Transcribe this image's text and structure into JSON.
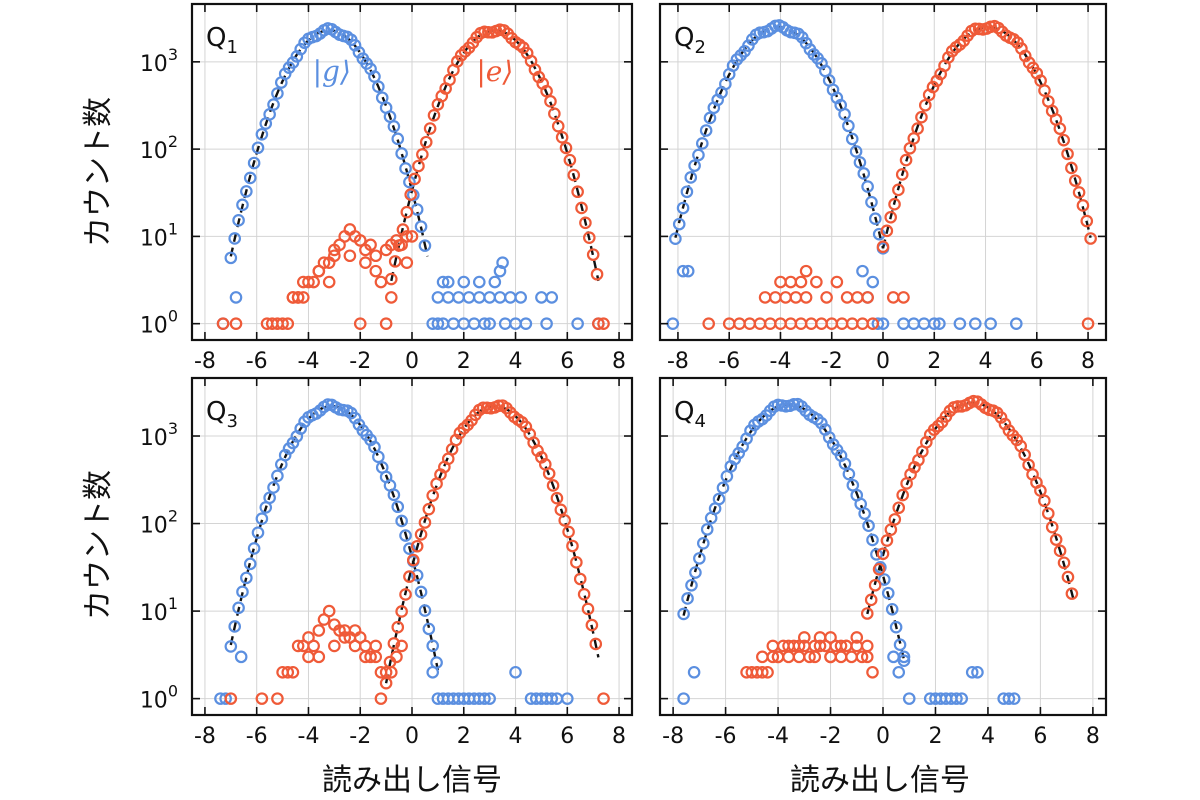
{
  "chart_data": [
    {
      "type": "scatter",
      "panel": "Q",
      "panel_sub": "1",
      "y_scale": "log",
      "xlim": [
        -8.5,
        8.5
      ],
      "ylim": [
        0.65,
        4600
      ],
      "xticks": [
        -8,
        -6,
        -4,
        -2,
        0,
        2,
        4,
        6,
        8
      ],
      "yticks": [
        1,
        10,
        100,
        1000
      ],
      "ytick_labels": [
        {
          "base": "10",
          "exp": "0"
        },
        {
          "base": "10",
          "exp": "1"
        },
        {
          "base": "10",
          "exp": "2"
        },
        {
          "base": "10",
          "exp": "3"
        }
      ],
      "xlabel": "",
      "ylabel": "カウント数",
      "grid": true,
      "annotations": [
        {
          "text": "|g⟩",
          "x": -3.1,
          "y": 600,
          "color": "#5b8fe0"
        },
        {
          "text": "|e⟩",
          "x": 3.2,
          "y": 600,
          "color": "#ef5a38"
        }
      ],
      "fits": [
        {
          "mu": -3.2,
          "sigma": 1.1,
          "peak": 2300
        },
        {
          "mu": 3.2,
          "sigma": 1.1,
          "peak": 2300
        }
      ],
      "series": [
        {
          "color": "#5b8fe0",
          "fit_mu": -3.2,
          "fit_sigma": 1.1,
          "fit_peak": 2300,
          "fit_from": -7.0,
          "fit_to": 0.6,
          "extra_x": [
            -7.3,
            -6.8,
            0.8,
            1.0,
            1.2,
            1.6,
            2.0,
            2.4,
            2.8,
            3.0,
            3.6,
            4.0,
            4.4,
            5.2,
            6.4,
            7.2,
            1.0,
            1.4,
            1.8,
            2.2,
            2.6,
            3.0,
            3.4,
            3.8,
            4.2,
            5.0,
            5.4,
            1.4,
            2.6,
            3.2,
            3.4,
            3.5,
            1.2,
            2.0
          ],
          "extra_y": [
            1,
            2,
            1,
            1,
            1,
            1,
            1,
            1,
            1,
            1,
            1,
            1,
            1,
            1,
            1,
            1,
            2,
            2,
            2,
            2,
            2,
            2,
            2,
            2,
            2,
            2,
            2,
            3,
            3,
            3,
            4,
            5,
            3,
            3
          ]
        },
        {
          "color": "#ef5a38",
          "fit_mu": 3.2,
          "fit_sigma": 1.1,
          "fit_peak": 2300,
          "fit_from": -0.8,
          "fit_to": 7.2,
          "extra_x": [
            -7.3,
            -6.8,
            -5.6,
            -5.2,
            -5.0,
            -4.6,
            -4.4,
            -4.2,
            -4.0,
            -3.8,
            -3.6,
            -3.2,
            -3.0,
            -2.8,
            -2.6,
            -2.4,
            -2.2,
            -2.0,
            -1.8,
            -1.6,
            -1.4,
            -1.0,
            -0.8,
            -0.6,
            -0.4,
            -0.2,
            0.0,
            -4.6,
            -4.2,
            -3.6,
            -3.4,
            -3.0,
            -2.4,
            -1.8,
            -1.4,
            -1.2,
            -0.8,
            -0.2,
            7.2,
            7.4,
            -5.4,
            -4.8,
            -2.0,
            -1.0,
            -4.4,
            -3.2
          ],
          "extra_y": [
            1,
            1,
            1,
            1,
            1,
            2,
            2,
            2,
            3,
            3,
            4,
            5,
            6,
            8,
            10,
            12,
            10,
            9,
            7,
            8,
            6,
            7,
            8,
            9,
            8,
            10,
            10,
            2,
            3,
            4,
            5,
            7,
            6,
            5,
            4,
            3,
            2,
            5,
            1,
            1,
            1,
            1,
            1,
            1,
            2,
            3
          ]
        }
      ]
    },
    {
      "type": "scatter",
      "panel": "Q",
      "panel_sub": "2",
      "y_scale": "log",
      "xlim": [
        -8.7,
        8.7
      ],
      "ylim": [
        0.65,
        4600
      ],
      "xticks": [
        -8,
        -6,
        -4,
        -2,
        0,
        2,
        4,
        6,
        8
      ],
      "yticks": [
        1,
        10,
        100,
        1000
      ],
      "ytick_labels": [],
      "xlabel": "",
      "ylabel": "",
      "grid": true,
      "annotations": [],
      "fits": [
        {
          "mu": -4.1,
          "sigma": 1.2,
          "peak": 2500
        },
        {
          "mu": 4.1,
          "sigma": 1.2,
          "peak": 2500
        }
      ],
      "series": [
        {
          "color": "#5b8fe0",
          "fit_mu": -4.1,
          "fit_sigma": 1.2,
          "fit_peak": 2500,
          "fit_from": -8.1,
          "fit_to": 0.0,
          "extra_x": [
            -8.2,
            -7.8,
            -7.6,
            -0.4,
            0.0,
            0.8,
            1.2,
            1.6,
            2.0,
            2.2,
            3.0,
            3.6,
            4.2,
            5.2,
            -0.6,
            -0.2,
            -0.8
          ],
          "extra_y": [
            1,
            4,
            4,
            3,
            1,
            1,
            1,
            1,
            1,
            1,
            1,
            1,
            1,
            1,
            2,
            1,
            4
          ]
        },
        {
          "color": "#ef5a38",
          "fit_mu": 4.1,
          "fit_sigma": 1.2,
          "fit_peak": 2500,
          "fit_from": 0.0,
          "fit_to": 8.1,
          "extra_x": [
            -6.8,
            -6.0,
            -5.6,
            -5.2,
            -4.8,
            -4.4,
            -4.0,
            -3.6,
            -3.2,
            -2.8,
            -2.4,
            -2.0,
            -1.6,
            -1.2,
            -0.8,
            -0.4,
            -4.6,
            -4.2,
            -3.8,
            -3.4,
            -3.0,
            -2.2,
            -1.4,
            -0.6,
            -4.0,
            -3.6,
            -3.2,
            -3.0,
            -2.6,
            -1.8,
            -1.0,
            0.4,
            0.8,
            8.0
          ],
          "extra_y": [
            1,
            1,
            1,
            1,
            1,
            1,
            1,
            1,
            1,
            1,
            1,
            1,
            1,
            1,
            1,
            1,
            2,
            2,
            2,
            2,
            2,
            2,
            2,
            2,
            3,
            3,
            3,
            4,
            3,
            3,
            2,
            2,
            2,
            1
          ]
        }
      ]
    },
    {
      "type": "scatter",
      "panel": "Q",
      "panel_sub": "3",
      "y_scale": "log",
      "xlim": [
        -8.5,
        8.5
      ],
      "ylim": [
        0.65,
        4600
      ],
      "xticks": [
        -8,
        -6,
        -4,
        -2,
        0,
        2,
        4,
        6,
        8
      ],
      "yticks": [
        1,
        10,
        100,
        1000
      ],
      "ytick_labels": [
        {
          "base": "10",
          "exp": "0"
        },
        {
          "base": "10",
          "exp": "1"
        },
        {
          "base": "10",
          "exp": "2"
        },
        {
          "base": "10",
          "exp": "3"
        }
      ],
      "xlabel": "読み出し信号",
      "ylabel": "カウント数",
      "grid": true,
      "annotations": [],
      "fits": [
        {
          "mu": -3.1,
          "sigma": 1.1,
          "peak": 2200
        },
        {
          "mu": 3.2,
          "sigma": 1.1,
          "peak": 2200
        }
      ],
      "series": [
        {
          "color": "#5b8fe0",
          "fit_mu": -3.1,
          "fit_sigma": 1.1,
          "fit_peak": 2200,
          "fit_from": -7.0,
          "fit_to": 1.0,
          "extra_x": [
            -7.4,
            -7.2,
            -6.6,
            0.8,
            1.0,
            1.2,
            1.4,
            1.6,
            1.8,
            2.0,
            2.2,
            2.4,
            2.6,
            2.8,
            3.0,
            4.6,
            4.8,
            5.0,
            5.2,
            5.4,
            5.6,
            6.0,
            4.0
          ],
          "extra_y": [
            1,
            1,
            3,
            2,
            1,
            1,
            1,
            1,
            1,
            1,
            1,
            1,
            1,
            1,
            1,
            1,
            1,
            1,
            1,
            1,
            1,
            1,
            2
          ]
        },
        {
          "color": "#ef5a38",
          "fit_mu": 3.2,
          "fit_sigma": 1.1,
          "fit_peak": 2200,
          "fit_from": -1.0,
          "fit_to": 7.2,
          "extra_x": [
            -7.0,
            -5.8,
            -5.2,
            -4.6,
            -4.4,
            -4.2,
            -4.0,
            -3.8,
            -3.6,
            -3.4,
            -3.2,
            -3.0,
            -2.8,
            -2.6,
            -2.4,
            -2.2,
            -2.0,
            -1.8,
            -1.6,
            -1.4,
            -1.2,
            -1.0,
            -0.8,
            -0.6,
            -0.4,
            -4.0,
            -3.6,
            -3.0,
            -2.6,
            -2.2,
            -1.8,
            -1.4,
            -5.0,
            -4.8,
            7.4,
            -1.2
          ],
          "extra_y": [
            1,
            1,
            1,
            2,
            4,
            4,
            3,
            4,
            6,
            8,
            10,
            7,
            6,
            6,
            5,
            6,
            5,
            4,
            3,
            3,
            2,
            2,
            2,
            3,
            4,
            5,
            3,
            4,
            5,
            4,
            3,
            4,
            2,
            2,
            1,
            1
          ]
        }
      ]
    },
    {
      "type": "scatter",
      "panel": "Q",
      "panel_sub": "4",
      "y_scale": "log",
      "xlim": [
        -8.5,
        8.5
      ],
      "ylim": [
        0.65,
        4600
      ],
      "xticks": [
        -8,
        -6,
        -4,
        -2,
        0,
        2,
        4,
        6,
        8
      ],
      "yticks": [
        1,
        10,
        100,
        1000
      ],
      "ytick_labels": [],
      "xlabel": "読み出し信号",
      "ylabel": "",
      "grid": true,
      "annotations": [],
      "fits": [
        {
          "mu": -3.6,
          "sigma": 1.2,
          "peak": 2300
        },
        {
          "mu": 3.4,
          "sigma": 1.2,
          "peak": 2400
        }
      ],
      "series": [
        {
          "color": "#5b8fe0",
          "fit_mu": -3.6,
          "fit_sigma": 1.2,
          "fit_peak": 2300,
          "fit_from": -7.6,
          "fit_to": 0.8,
          "extra_x": [
            -7.6,
            -7.2,
            0.4,
            0.6,
            0.8,
            1.0,
            1.8,
            2.0,
            2.2,
            2.4,
            2.6,
            2.8,
            3.0,
            4.6,
            4.8,
            5.0,
            3.4,
            3.6
          ],
          "extra_y": [
            1,
            2,
            3,
            2,
            3,
            1,
            1,
            1,
            1,
            1,
            1,
            1,
            1,
            1,
            1,
            1,
            2,
            2
          ]
        },
        {
          "color": "#ef5a38",
          "fit_mu": 3.4,
          "fit_sigma": 1.2,
          "fit_peak": 2400,
          "fit_from": -0.6,
          "fit_to": 7.3,
          "extra_x": [
            -5.2,
            -5.0,
            -4.8,
            -4.6,
            -4.4,
            -4.2,
            -4.0,
            -3.8,
            -3.6,
            -3.4,
            -3.2,
            -3.0,
            -2.8,
            -2.6,
            -2.4,
            -2.2,
            -2.0,
            -1.8,
            -1.6,
            -1.4,
            -1.2,
            -1.0,
            -0.8,
            -0.6,
            -0.4,
            -4.2,
            -3.6,
            -3.0,
            -2.4,
            -2.0,
            -1.4,
            -1.0,
            -0.6,
            -4.6,
            -4.0,
            -3.2,
            -2.6,
            -2.0,
            -1.6
          ],
          "extra_y": [
            2,
            2,
            2,
            2,
            2,
            3,
            3,
            4,
            3,
            4,
            4,
            4,
            3,
            4,
            4,
            4,
            3,
            4,
            4,
            4,
            3,
            4,
            3,
            3,
            2,
            4,
            4,
            5,
            5,
            5,
            4,
            5,
            4,
            3,
            3,
            3,
            3,
            3,
            3
          ]
        }
      ]
    }
  ]
}
